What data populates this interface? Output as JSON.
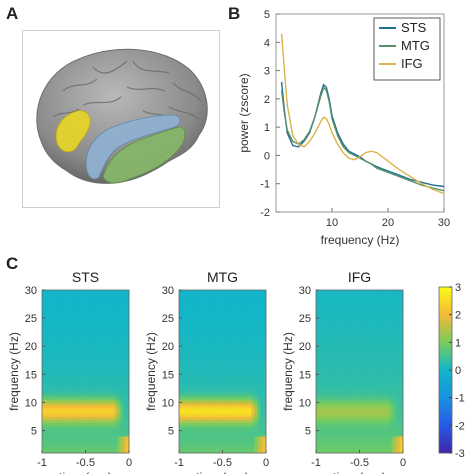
{
  "panels": {
    "a": "A",
    "b": "B",
    "c": "C"
  },
  "brain": {
    "regions": [
      {
        "name": "IFG",
        "color": "#e4d42a"
      },
      {
        "name": "STS",
        "color": "#8fb0d0"
      },
      {
        "name": "MTG",
        "color": "#86b56a"
      }
    ]
  },
  "colors": {
    "STS": "#1f6f8f",
    "MTG": "#5a8f6a",
    "IFG": "#d9b44a"
  },
  "chart_data": [
    {
      "type": "line",
      "xlabel": "frequency (Hz)",
      "ylabel": "power (zscore)",
      "xlim": [
        0,
        30
      ],
      "ylim": [
        -2,
        5
      ],
      "xticks": [
        10,
        20,
        30
      ],
      "yticks": [
        -2,
        -1,
        0,
        1,
        2,
        3,
        4,
        5
      ],
      "legend_position": "top-right",
      "series": [
        {
          "name": "STS",
          "x": [
            1,
            1.5,
            2,
            3,
            4,
            5,
            6,
            7,
            8,
            8.5,
            9,
            9.5,
            10,
            11,
            12,
            13,
            14,
            15,
            16,
            17,
            18,
            20,
            22,
            24,
            26,
            28,
            30
          ],
          "y": [
            2.6,
            1.6,
            0.8,
            0.35,
            0.3,
            0.5,
            0.8,
            1.4,
            2.2,
            2.5,
            2.4,
            2.0,
            1.4,
            0.8,
            0.4,
            0.15,
            0.05,
            -0.05,
            -0.2,
            -0.3,
            -0.4,
            -0.55,
            -0.7,
            -0.85,
            -0.95,
            -1.05,
            -1.1
          ]
        },
        {
          "name": "MTG",
          "x": [
            1,
            1.5,
            2,
            3,
            4,
            5,
            6,
            7,
            8,
            8.5,
            9,
            9.5,
            10,
            11,
            12,
            13,
            14,
            15,
            16,
            17,
            18,
            20,
            22,
            24,
            26,
            28,
            30
          ],
          "y": [
            2.3,
            1.5,
            0.9,
            0.5,
            0.4,
            0.55,
            0.85,
            1.4,
            2.1,
            2.4,
            2.3,
            1.9,
            1.3,
            0.7,
            0.3,
            0.1,
            0.0,
            -0.1,
            -0.2,
            -0.3,
            -0.45,
            -0.6,
            -0.75,
            -0.9,
            -1.05,
            -1.15,
            -1.25
          ]
        },
        {
          "name": "IFG",
          "x": [
            1,
            1.5,
            2,
            3,
            4,
            5,
            6,
            7,
            8,
            8.5,
            9,
            9.5,
            10,
            11,
            12,
            13,
            14,
            15,
            16,
            17,
            18,
            20,
            22,
            24,
            26,
            28,
            30
          ],
          "y": [
            4.3,
            3.0,
            1.8,
            0.7,
            0.4,
            0.3,
            0.5,
            0.8,
            1.2,
            1.35,
            1.3,
            1.1,
            0.8,
            0.4,
            0.1,
            -0.1,
            -0.15,
            -0.05,
            0.1,
            0.15,
            0.1,
            -0.2,
            -0.5,
            -0.75,
            -1.0,
            -1.2,
            -1.35
          ]
        }
      ]
    },
    {
      "type": "heatmap",
      "title": "STS",
      "xlabel": "time (sec)",
      "ylabel": "frequency (Hz)",
      "xlim": [
        -1,
        0
      ],
      "ylim": [
        1,
        30
      ],
      "xticks": [
        "-1",
        "-0.5",
        "0"
      ],
      "yticks": [
        "5",
        "10",
        "15",
        "20",
        "25",
        "30"
      ],
      "alpha_peak_hz": 8.5,
      "alpha_peak_value": 2.0,
      "background_value": 0.2
    },
    {
      "type": "heatmap",
      "title": "MTG",
      "xlabel": "time (sec)",
      "ylabel": "frequency (Hz)",
      "xlim": [
        -1,
        0
      ],
      "ylim": [
        1,
        30
      ],
      "xticks": [
        "-1",
        "-0.5",
        "0"
      ],
      "yticks": [
        "5",
        "10",
        "15",
        "20",
        "25",
        "30"
      ],
      "alpha_peak_hz": 8.5,
      "alpha_peak_value": 2.3,
      "background_value": 0.2
    },
    {
      "type": "heatmap",
      "title": "IFG",
      "xlabel": "time (sec)",
      "ylabel": "frequency (Hz)",
      "xlim": [
        -1,
        0
      ],
      "ylim": [
        1,
        30
      ],
      "xticks": [
        "-1",
        "-0.5",
        "0"
      ],
      "yticks": [
        "5",
        "10",
        "15",
        "20",
        "25",
        "30"
      ],
      "alpha_peak_hz": 8.5,
      "alpha_peak_value": 0.9,
      "background_value": 0.3
    }
  ],
  "colorbar": {
    "min": -3,
    "max": 3,
    "ticks": [
      "3",
      "2",
      "1",
      "0",
      "-1",
      "-2",
      "-3"
    ]
  }
}
